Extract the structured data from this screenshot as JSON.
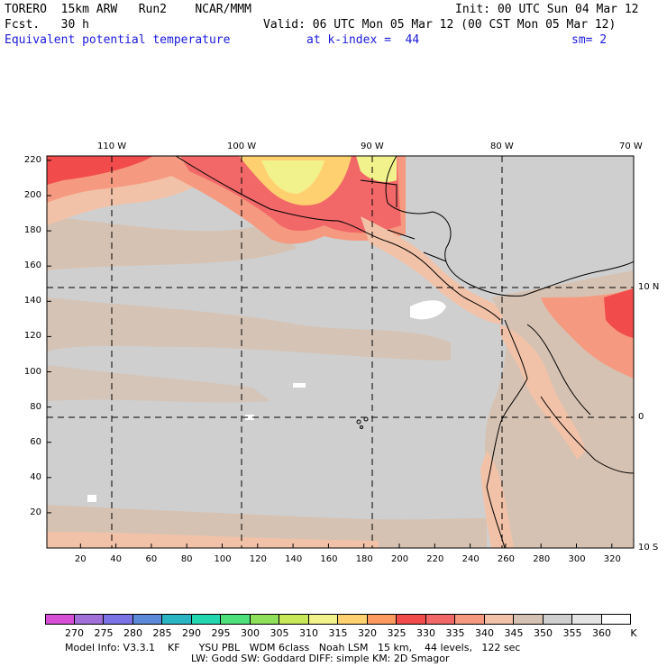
{
  "header": {
    "line1_left": "TORERO  15km ARW   Run2    NCAR/MMM",
    "line1_right": "Init: 00 UTC Sun 04 Mar 12",
    "line2_left": "Fcst.   30 h",
    "line2_right": "Valid: 06 UTC Mon 05 Mar 12 (00 CST Mon 05 Mar 12)",
    "line3_field": "Equivalent potential temperature",
    "line3_level": "at k-index =  44",
    "line3_sm": "sm= 2"
  },
  "map": {
    "top_lon_labels": [
      "110 W",
      "100 W",
      "90 W",
      "80 W",
      "70 W"
    ],
    "right_lat_labels": [
      "10 N",
      "0",
      "10 S"
    ],
    "x_axis_ticks": [
      "20",
      "40",
      "60",
      "80",
      "100",
      "120",
      "140",
      "160",
      "180",
      "200",
      "220",
      "240",
      "260",
      "280",
      "300",
      "320"
    ],
    "y_axis_ticks": [
      "20",
      "40",
      "60",
      "80",
      "100",
      "120",
      "140",
      "160",
      "180",
      "200",
      "220"
    ]
  },
  "colorbar": {
    "unit": "K",
    "tick_labels": [
      "270",
      "275",
      "280",
      "285",
      "290",
      "295",
      "300",
      "305",
      "310",
      "315",
      "320",
      "325",
      "330",
      "335",
      "340",
      "345",
      "350",
      "355",
      "360"
    ],
    "colors": [
      "#d64fd6",
      "#a070d8",
      "#7b72e6",
      "#5c8ad8",
      "#2ab5c4",
      "#22d6b0",
      "#4ee07a",
      "#8ee05a",
      "#c8e85a",
      "#f2f28c",
      "#ffd070",
      "#ff9a60",
      "#f24b4b",
      "#f26868",
      "#f59a80",
      "#f2c2a8",
      "#d6c2b2",
      "#cfcfcf",
      "#e4e4e4",
      "#ffffff"
    ]
  },
  "footer": {
    "line1": "Model Info: V3.3.1    KF      YSU PBL   WDM 6class   Noah LSM   15 km,    44 levels,   122 sec",
    "line2": "LW: Godd SW: Goddard DIFF: simple KM: 2D Smagor"
  }
}
